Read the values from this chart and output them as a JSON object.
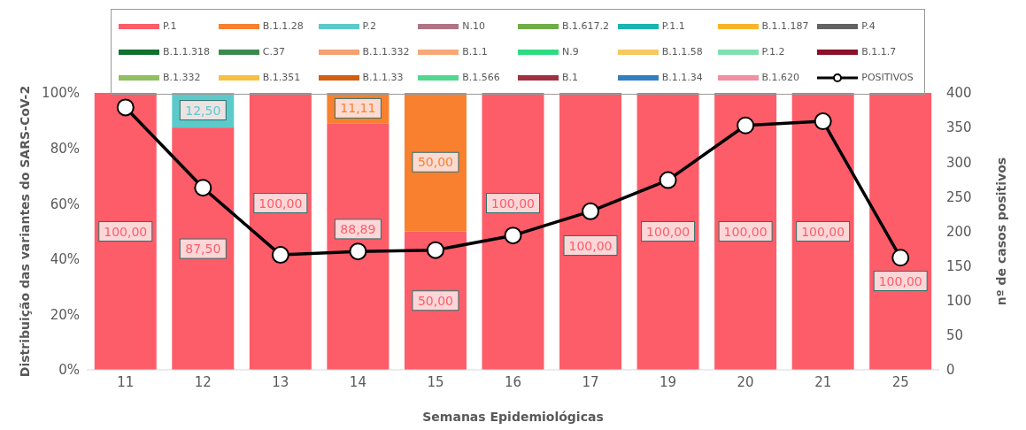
{
  "chart_data": {
    "type": "bar",
    "stacked": true,
    "xlabel": "Semanas Epidemiológicas",
    "ylabel": "Distribuição das variantes do SARS-CoV-2",
    "y2label": "nº de casos positivos",
    "categories": [
      "11",
      "12",
      "13",
      "14",
      "15",
      "16",
      "17",
      "19",
      "20",
      "21",
      "25"
    ],
    "ylim": [
      0,
      100
    ],
    "yticks": [
      {
        "value": 0,
        "label": "0%"
      },
      {
        "value": 20,
        "label": "20%"
      },
      {
        "value": 40,
        "label": "40%"
      },
      {
        "value": 60,
        "label": "60%"
      },
      {
        "value": 80,
        "label": "80%"
      },
      {
        "value": 100,
        "label": "100%"
      }
    ],
    "y2lim": [
      0,
      400
    ],
    "y2ticks": [
      0,
      50,
      100,
      150,
      200,
      250,
      300,
      350,
      400
    ],
    "legend": "top",
    "marker": "circle",
    "series": [
      {
        "name": "P.1",
        "color": "#fd5c69",
        "values": [
          100,
          87.5,
          100,
          88.89,
          50,
          100,
          100,
          100,
          100,
          100,
          100
        ],
        "value_labels": [
          "100,00",
          "87,50",
          "100,00",
          "88,89",
          "50,00",
          "100,00",
          "100,00",
          "100,00",
          "100,00",
          "100,00",
          "100,00"
        ]
      },
      {
        "name": "B.1.1.28",
        "color": "#f8802e",
        "values": [
          0,
          0,
          0,
          11.11,
          50,
          0,
          0,
          0,
          0,
          0,
          0
        ],
        "value_labels": [
          null,
          null,
          null,
          "11,11",
          "50,00",
          null,
          null,
          null,
          null,
          null,
          null
        ]
      },
      {
        "name": "P.2",
        "color": "#5ccaca",
        "values": [
          0,
          12.5,
          0,
          0,
          0,
          0,
          0,
          0,
          0,
          0,
          0
        ],
        "value_labels": [
          null,
          "12,50",
          null,
          null,
          null,
          null,
          null,
          null,
          null,
          null,
          null
        ]
      },
      {
        "name": "N.10",
        "color": "#b07484",
        "values": [
          0,
          0,
          0,
          0,
          0,
          0,
          0,
          0,
          0,
          0,
          0
        ]
      },
      {
        "name": "B.1.617.2",
        "color": "#70ad47",
        "values": [
          0,
          0,
          0,
          0,
          0,
          0,
          0,
          0,
          0,
          0,
          0
        ]
      },
      {
        "name": "P.1.1",
        "color": "#1ab5b0",
        "values": [
          0,
          0,
          0,
          0,
          0,
          0,
          0,
          0,
          0,
          0,
          0
        ]
      },
      {
        "name": "B.1.1.187",
        "color": "#f9b52a",
        "values": [
          0,
          0,
          0,
          0,
          0,
          0,
          0,
          0,
          0,
          0,
          0
        ]
      },
      {
        "name": "P.4",
        "color": "#636363",
        "values": [
          0,
          0,
          0,
          0,
          0,
          0,
          0,
          0,
          0,
          0,
          0
        ]
      },
      {
        "name": "B.1.1.318",
        "color": "#107030",
        "values": [
          0,
          0,
          0,
          0,
          0,
          0,
          0,
          0,
          0,
          0,
          0
        ]
      },
      {
        "name": "C.37",
        "color": "#3a8a50",
        "values": [
          0,
          0,
          0,
          0,
          0,
          0,
          0,
          0,
          0,
          0,
          0
        ]
      },
      {
        "name": "B.1.1.332",
        "color": "#f4a070",
        "values": [
          0,
          0,
          0,
          0,
          0,
          0,
          0,
          0,
          0,
          0,
          0
        ]
      },
      {
        "name": "B.1.1",
        "color": "#f8a878",
        "values": [
          0,
          0,
          0,
          0,
          0,
          0,
          0,
          0,
          0,
          0,
          0
        ]
      },
      {
        "name": "N.9",
        "color": "#2ddc80",
        "values": [
          0,
          0,
          0,
          0,
          0,
          0,
          0,
          0,
          0,
          0,
          0
        ]
      },
      {
        "name": "B.1.1.58",
        "color": "#f8c860",
        "values": [
          0,
          0,
          0,
          0,
          0,
          0,
          0,
          0,
          0,
          0,
          0
        ]
      },
      {
        "name": "P.1.2",
        "color": "#80e0b0",
        "values": [
          0,
          0,
          0,
          0,
          0,
          0,
          0,
          0,
          0,
          0,
          0
        ]
      },
      {
        "name": "B.1.1.7",
        "color": "#8b1028",
        "values": [
          0,
          0,
          0,
          0,
          0,
          0,
          0,
          0,
          0,
          0,
          0
        ]
      },
      {
        "name": "B.1.332",
        "color": "#90c060",
        "values": [
          0,
          0,
          0,
          0,
          0,
          0,
          0,
          0,
          0,
          0,
          0
        ]
      },
      {
        "name": "B.1.351",
        "color": "#f8c040",
        "values": [
          0,
          0,
          0,
          0,
          0,
          0,
          0,
          0,
          0,
          0,
          0
        ]
      },
      {
        "name": "B.1.1.33",
        "color": "#d06010",
        "values": [
          0,
          0,
          0,
          0,
          0,
          0,
          0,
          0,
          0,
          0,
          0
        ]
      },
      {
        "name": "B.1.566",
        "color": "#50d890",
        "values": [
          0,
          0,
          0,
          0,
          0,
          0,
          0,
          0,
          0,
          0,
          0
        ]
      },
      {
        "name": "B.1",
        "color": "#a03040",
        "values": [
          0,
          0,
          0,
          0,
          0,
          0,
          0,
          0,
          0,
          0,
          0
        ]
      },
      {
        "name": "B.1.1.34",
        "color": "#3080c0",
        "values": [
          0,
          0,
          0,
          0,
          0,
          0,
          0,
          0,
          0,
          0,
          0
        ]
      },
      {
        "name": "B.1.620",
        "color": "#f090a0",
        "values": [
          0,
          0,
          0,
          0,
          0,
          0,
          0,
          0,
          0,
          0,
          0
        ]
      },
      {
        "name": "POSITIVOS",
        "type": "line",
        "axis": "y2",
        "color": "#000000",
        "values": [
          379,
          263,
          166,
          171,
          173,
          194,
          229,
          274,
          353,
          359,
          162
        ]
      }
    ]
  }
}
